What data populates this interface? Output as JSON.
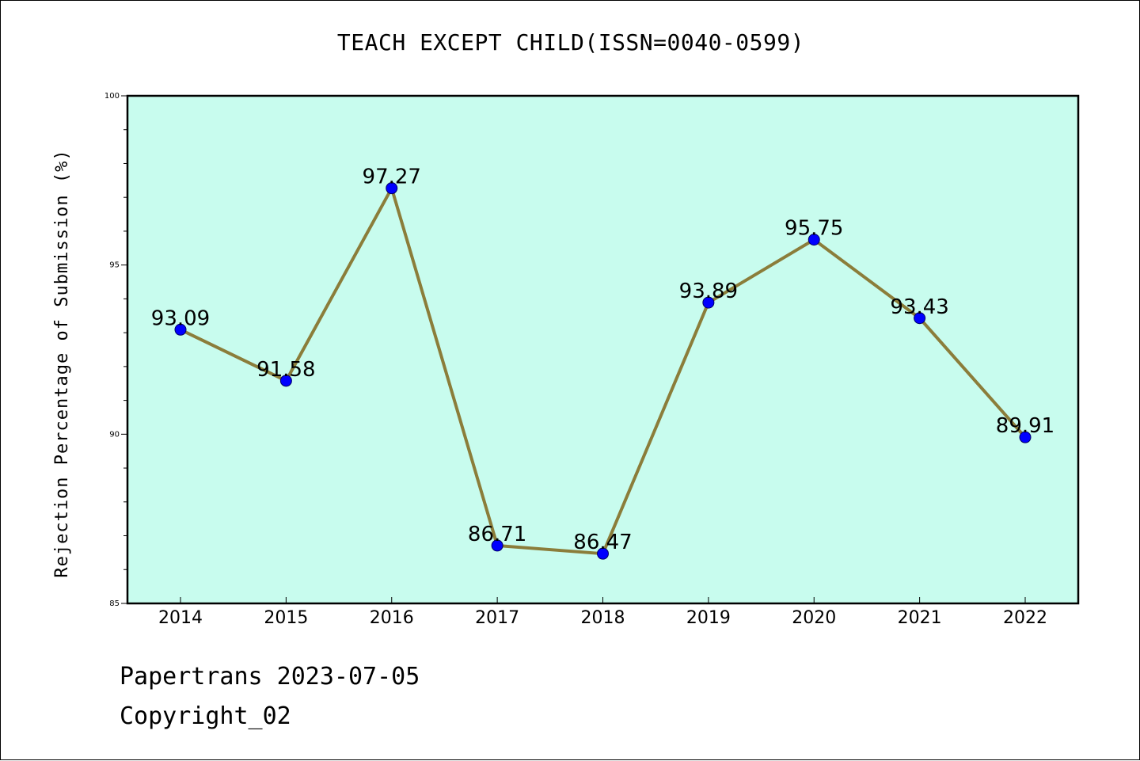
{
  "title": "TEACH EXCEPT CHILD(ISSN=0040-0599)",
  "footer": {
    "line1": "Papertrans 2023-07-05",
    "line2": "Copyright_02"
  },
  "colors": {
    "plot_background": "#c8fcee",
    "line": "#8b7d3a",
    "marker": "#0000ff"
  },
  "chart_data": {
    "type": "line",
    "title": "TEACH EXCEPT CHILD(ISSN=0040-0599)",
    "xlabel": "",
    "ylabel": "Rejection Percentage of Submission (%)",
    "categories": [
      "2014",
      "2015",
      "2016",
      "2017",
      "2018",
      "2019",
      "2020",
      "2021",
      "2022"
    ],
    "series": [
      {
        "values": [
          93.09,
          91.58,
          97.27,
          86.71,
          86.47,
          93.89,
          95.75,
          93.43,
          89.91
        ],
        "labels": [
          "93.09",
          "91.58",
          "97.27",
          "86.71",
          "86.47",
          "93.89",
          "95.75",
          "93.43",
          "89.91"
        ]
      }
    ],
    "ylim": [
      85,
      100
    ],
    "yticks": [
      "85",
      "90",
      "95",
      "100"
    ],
    "grid": false,
    "legend": "none"
  }
}
